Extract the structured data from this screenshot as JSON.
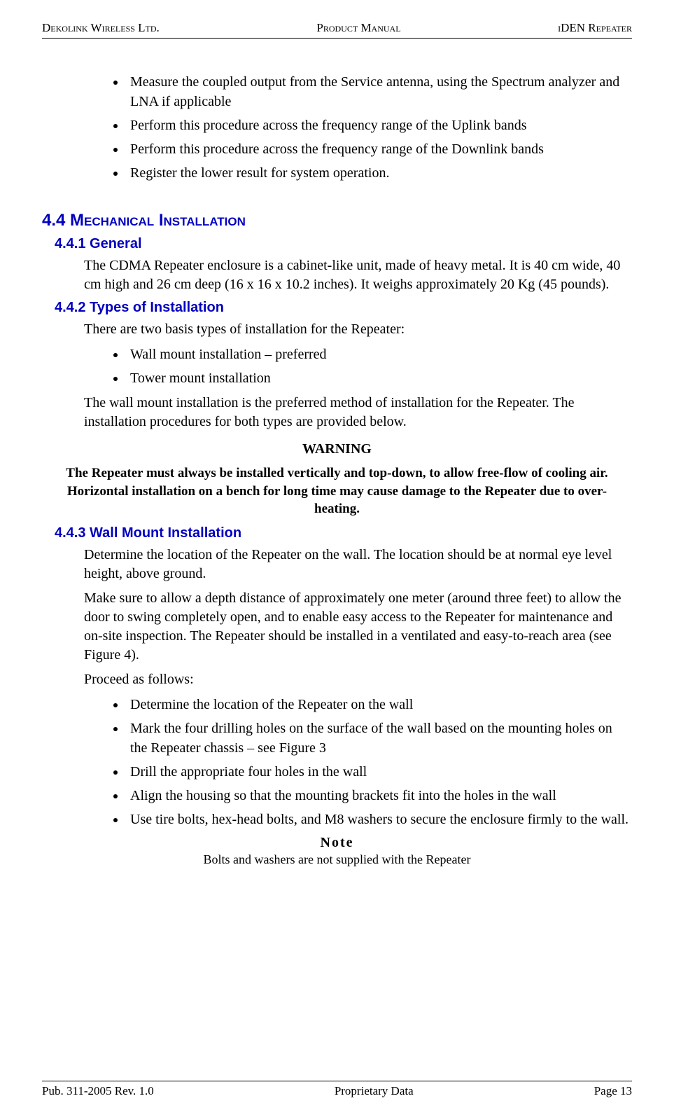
{
  "header": {
    "left": "Dekolink Wireless Ltd.",
    "center": "Product Manual",
    "right": "iDEN Repeater"
  },
  "top_bullets": [
    "Measure the coupled output from the Service antenna, using the Spectrum analyzer and LNA if applicable",
    "Perform this procedure across the frequency range of the Uplink bands",
    "Perform this procedure across the frequency range of the Downlink bands",
    "Register the lower result for system operation."
  ],
  "sec44": {
    "num": "4.4",
    "title": "Mechanical Installation"
  },
  "sec441": {
    "heading": "4.4.1 General",
    "para": "The CDMA Repeater enclosure is a cabinet-like unit, made of heavy metal. It is 40 cm wide, 40 cm high and 26 cm deep (16 x 16 x 10.2 inches).  It weighs approximately 20 Kg (45 pounds)."
  },
  "sec442": {
    "heading": "4.4.2 Types of Installation",
    "para1": "There are two basis types of installation for the Repeater:",
    "bullets": [
      "Wall mount installation – preferred",
      "Tower mount installation"
    ],
    "para2": "The wall mount installation is the preferred method of installation for the Repeater. The installation procedures for both types are provided below."
  },
  "warning": {
    "title": "WARNING",
    "body": "The Repeater must always be installed vertically and top-down, to allow free-flow of cooling air.  Horizontal installation on a bench for long time may cause damage to the Repeater due to over-heating."
  },
  "sec443": {
    "heading": "4.4.3 Wall Mount Installation",
    "para1": "Determine the location of the Repeater on the wall. The location should be at normal eye level height, above ground.",
    "para2": "Make sure to allow a depth distance of approximately one meter (around three feet) to allow the door to swing completely open, and to enable easy access to the Repeater for maintenance and on-site inspection. The Repeater should be installed in a ventilated and easy-to-reach area (see Figure 4).",
    "para3": "Proceed as follows:",
    "bullets": [
      "Determine the location of the Repeater on the wall",
      "Mark the four drilling holes on the surface of the wall based on the mounting holes on the Repeater chassis – see Figure 3",
      "Drill the appropriate four holes in the wall",
      "Align the housing so that the mounting brackets fit into the holes in the wall",
      "Use tire bolts, hex-head bolts, and M8 washers to secure the enclosure firmly to the wall."
    ]
  },
  "note": {
    "title": "Note",
    "body": "Bolts and washers are not supplied with the Repeater"
  },
  "footer": {
    "left": "Pub. 311-2005 Rev. 1.0",
    "center": "Proprietary Data",
    "right": "Page 13"
  }
}
